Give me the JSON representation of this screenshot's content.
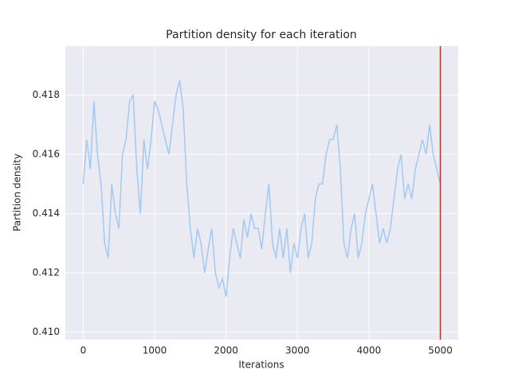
{
  "chart_data": {
    "type": "line",
    "title": "Partition density for each iteration",
    "xlabel": "Iterations",
    "ylabel": "Partition density",
    "x": [
      0,
      50,
      100,
      150,
      200,
      250,
      300,
      350,
      400,
      450,
      500,
      550,
      600,
      650,
      700,
      750,
      800,
      850,
      900,
      950,
      1000,
      1050,
      1100,
      1150,
      1200,
      1250,
      1300,
      1350,
      1400,
      1450,
      1500,
      1550,
      1600,
      1650,
      1700,
      1750,
      1800,
      1850,
      1900,
      1950,
      2000,
      2050,
      2100,
      2150,
      2200,
      2250,
      2300,
      2350,
      2400,
      2450,
      2500,
      2550,
      2600,
      2650,
      2700,
      2750,
      2800,
      2850,
      2900,
      2950,
      3000,
      3050,
      3100,
      3150,
      3200,
      3250,
      3300,
      3350,
      3400,
      3450,
      3500,
      3550,
      3600,
      3650,
      3700,
      3750,
      3800,
      3850,
      3900,
      3950,
      4000,
      4050,
      4100,
      4150,
      4200,
      4250,
      4300,
      4350,
      4400,
      4450,
      4500,
      4550,
      4600,
      4650,
      4700,
      4750,
      4800,
      4850,
      4900,
      4950,
      5000
    ],
    "series": [
      {
        "name": "Partition density",
        "color": "#a1c9f4",
        "values": [
          0.415,
          0.4165,
          0.4155,
          0.4178,
          0.416,
          0.415,
          0.413,
          0.4125,
          0.415,
          0.414,
          0.4135,
          0.416,
          0.4165,
          0.4178,
          0.418,
          0.4155,
          0.414,
          0.4165,
          0.4155,
          0.4165,
          0.4178,
          0.4175,
          0.417,
          0.4165,
          0.416,
          0.417,
          0.418,
          0.4185,
          0.4175,
          0.415,
          0.4135,
          0.4125,
          0.4135,
          0.413,
          0.412,
          0.4128,
          0.4135,
          0.412,
          0.4115,
          0.4118,
          0.4112,
          0.4125,
          0.4135,
          0.413,
          0.4125,
          0.4138,
          0.4132,
          0.414,
          0.4135,
          0.4135,
          0.4128,
          0.414,
          0.415,
          0.413,
          0.4125,
          0.4135,
          0.4125,
          0.4135,
          0.412,
          0.413,
          0.4125,
          0.4135,
          0.414,
          0.4125,
          0.413,
          0.4145,
          0.415,
          0.415,
          0.416,
          0.4165,
          0.4165,
          0.417,
          0.4155,
          0.413,
          0.4125,
          0.4135,
          0.414,
          0.4125,
          0.413,
          0.414,
          0.4145,
          0.415,
          0.414,
          0.413,
          0.4135,
          0.413,
          0.4135,
          0.4145,
          0.4155,
          0.416,
          0.4145,
          0.415,
          0.4145,
          0.4155,
          0.416,
          0.4165,
          0.416,
          0.417,
          0.416,
          0.4155,
          0.415
        ]
      }
    ],
    "vline": {
      "x": 5000,
      "color": "#a8372c"
    },
    "xlim": [
      -250,
      5250
    ],
    "xticks": [
      0,
      1000,
      2000,
      3000,
      4000,
      5000
    ],
    "ylim": [
      0.40975,
      0.41965
    ],
    "yticks": [
      {
        "value": 0.41,
        "label": "0.410"
      },
      0.412,
      0.414,
      0.416,
      0.418
    ],
    "grid": true
  }
}
